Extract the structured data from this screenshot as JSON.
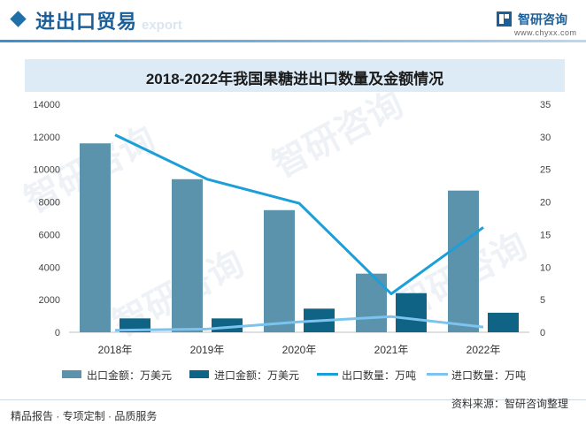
{
  "header": {
    "title": "进出口贸易",
    "ghost": "export",
    "brand_name": "智研咨询",
    "brand_url": "www.chyxx.com"
  },
  "watermark_text": "智研咨询",
  "chart_data": {
    "type": "bar",
    "title": "2018-2022年我国果糖进出口数量及金额情况",
    "categories": [
      "2018年",
      "2019年",
      "2020年",
      "2021年",
      "2022年"
    ],
    "y_left": {
      "min": 0,
      "max": 14000,
      "ticks": [
        0,
        2000,
        4000,
        6000,
        8000,
        10000,
        12000,
        14000
      ]
    },
    "y_right": {
      "min": 0,
      "max": 35,
      "ticks": [
        0,
        5,
        10,
        15,
        20,
        25,
        30,
        35
      ]
    },
    "series": [
      {
        "name": "出口金额：万美元",
        "kind": "bar",
        "axis": "left",
        "color": "#5b93ad",
        "values": [
          11600,
          9400,
          7500,
          3600,
          8700
        ]
      },
      {
        "name": "进口金额：万美元",
        "kind": "bar",
        "axis": "left",
        "color": "#0f6384",
        "values": [
          850,
          850,
          1450,
          2400,
          1200
        ]
      },
      {
        "name": "出口数量：万吨",
        "kind": "line",
        "axis": "right",
        "color": "#1c9fd8",
        "values": [
          30.3,
          23.5,
          19.8,
          5.9,
          16.1
        ]
      },
      {
        "name": "进口数量：万吨",
        "kind": "line",
        "axis": "right",
        "color": "#7cc3ef",
        "values": [
          0.3,
          0.5,
          1.6,
          2.4,
          0.8
        ]
      }
    ],
    "legend_position": "bottom",
    "grid": false
  },
  "footer": {
    "left": "精品报告 · 专项定制 · 品质服务",
    "source": "资料来源：智研咨询整理"
  }
}
